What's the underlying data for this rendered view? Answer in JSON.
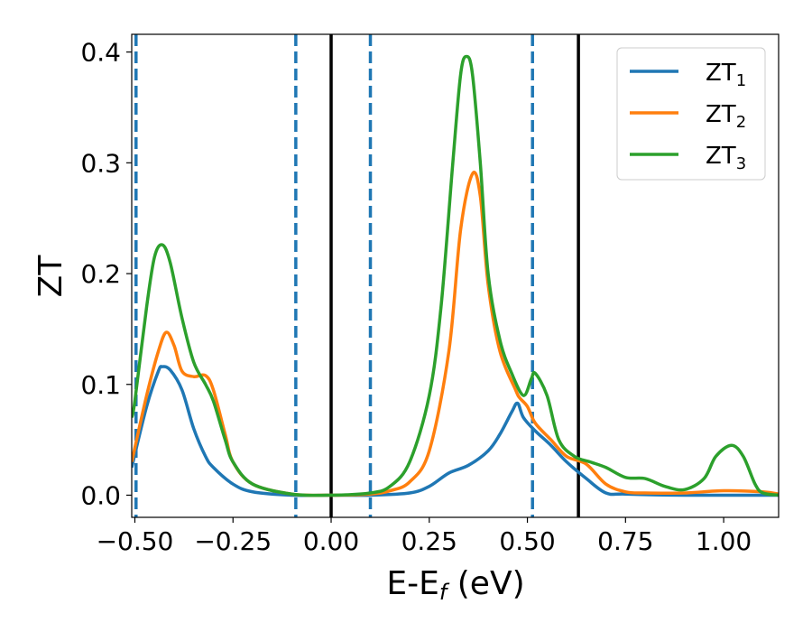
{
  "chart_data": {
    "type": "line",
    "title": "",
    "xlabel": "E-E",
    "xlabel_sub": "f",
    "xlabel_unit": " (eV)",
    "ylabel": "ZT",
    "xlim": [
      -0.508,
      1.14
    ],
    "ylim": [
      -0.02,
      0.416
    ],
    "xticks": [
      -0.5,
      -0.25,
      0.0,
      0.25,
      0.5,
      0.75,
      1.0
    ],
    "xtick_labels": [
      "−0.50",
      "−0.25",
      "0.00",
      "0.25",
      "0.50",
      "0.75",
      "1.00"
    ],
    "yticks": [
      0.0,
      0.1,
      0.2,
      0.3,
      0.4
    ],
    "ytick_labels": [
      "0.0",
      "0.1",
      "0.2",
      "0.3",
      "0.4"
    ],
    "grid": false,
    "legend_position": "top-right",
    "vlines_dashed": {
      "color": "#1f77b4",
      "x": [
        -0.497,
        -0.09,
        0.1,
        0.513
      ]
    },
    "vlines_solid": {
      "color": "#000000",
      "x": [
        0.0,
        0.63
      ]
    },
    "series": [
      {
        "name": "ZT",
        "sub": "1",
        "color": "#1f77b4",
        "x": [
          -0.508,
          -0.47,
          -0.44,
          -0.43,
          -0.41,
          -0.38,
          -0.35,
          -0.32,
          -0.3,
          -0.25,
          -0.2,
          -0.1,
          0,
          0.1,
          0.2,
          0.25,
          0.3,
          0.35,
          0.4,
          0.43,
          0.46,
          0.475,
          0.49,
          0.52,
          0.56,
          0.6,
          0.65,
          0.7,
          0.75,
          0.9,
          1.14
        ],
        "y": [
          0.025,
          0.08,
          0.112,
          0.116,
          0.113,
          0.095,
          0.06,
          0.035,
          0.025,
          0.01,
          0.003,
          0,
          0,
          0,
          0.002,
          0.008,
          0.02,
          0.027,
          0.04,
          0.055,
          0.075,
          0.083,
          0.07,
          0.058,
          0.045,
          0.03,
          0.015,
          0.002,
          0.001,
          0,
          0
        ]
      },
      {
        "name": "ZT",
        "sub": "2",
        "color": "#ff7f0e",
        "x": [
          -0.508,
          -0.47,
          -0.44,
          -0.42,
          -0.4,
          -0.38,
          -0.35,
          -0.32,
          -0.3,
          -0.27,
          -0.25,
          -0.2,
          -0.1,
          0,
          0.1,
          0.15,
          0.2,
          0.25,
          0.3,
          0.33,
          0.36,
          0.38,
          0.4,
          0.43,
          0.47,
          0.48,
          0.5,
          0.52,
          0.56,
          0.6,
          0.65,
          0.7,
          0.75,
          0.8,
          0.9,
          1.0,
          1.1,
          1.14
        ],
        "y": [
          0.03,
          0.09,
          0.13,
          0.147,
          0.135,
          0.112,
          0.107,
          0.108,
          0.095,
          0.055,
          0.03,
          0.01,
          0.001,
          0,
          0.001,
          0.004,
          0.012,
          0.04,
          0.13,
          0.24,
          0.29,
          0.27,
          0.19,
          0.13,
          0.095,
          0.088,
          0.08,
          0.065,
          0.05,
          0.035,
          0.028,
          0.01,
          0.003,
          0.002,
          0.002,
          0.004,
          0.003,
          0.001
        ]
      },
      {
        "name": "ZT",
        "sub": "3",
        "color": "#2ca02c",
        "x": [
          -0.508,
          -0.5,
          -0.47,
          -0.45,
          -0.43,
          -0.41,
          -0.38,
          -0.35,
          -0.32,
          -0.3,
          -0.27,
          -0.25,
          -0.2,
          -0.1,
          0,
          0.1,
          0.15,
          0.2,
          0.25,
          0.28,
          0.31,
          0.33,
          0.345,
          0.36,
          0.38,
          0.4,
          0.43,
          0.46,
          0.49,
          0.51,
          0.52,
          0.55,
          0.58,
          0.62,
          0.66,
          0.7,
          0.75,
          0.8,
          0.85,
          0.9,
          0.95,
          0.98,
          1.02,
          1.05,
          1.08,
          1.1,
          1.14
        ],
        "y": [
          0.07,
          0.085,
          0.17,
          0.215,
          0.226,
          0.21,
          0.16,
          0.12,
          0.1,
          0.085,
          0.05,
          0.03,
          0.01,
          0.001,
          0,
          0.002,
          0.008,
          0.03,
          0.09,
          0.17,
          0.3,
          0.38,
          0.396,
          0.38,
          0.3,
          0.2,
          0.14,
          0.11,
          0.09,
          0.105,
          0.11,
          0.09,
          0.05,
          0.035,
          0.03,
          0.025,
          0.016,
          0.015,
          0.008,
          0.005,
          0.015,
          0.035,
          0.045,
          0.035,
          0.01,
          0.002,
          0
        ]
      }
    ]
  }
}
